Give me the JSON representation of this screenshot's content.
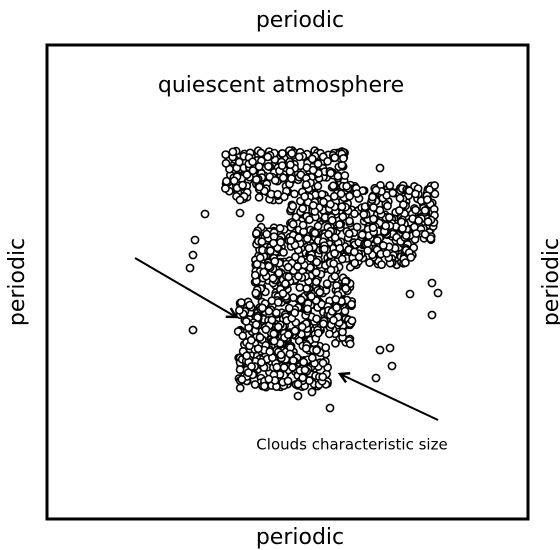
{
  "boundaries": {
    "top": "periodic",
    "bottom": "periodic",
    "left": "periodic",
    "right": "periodic"
  },
  "domain_label": "quiescent atmosphere",
  "annotation": "Clouds characteristic size"
}
